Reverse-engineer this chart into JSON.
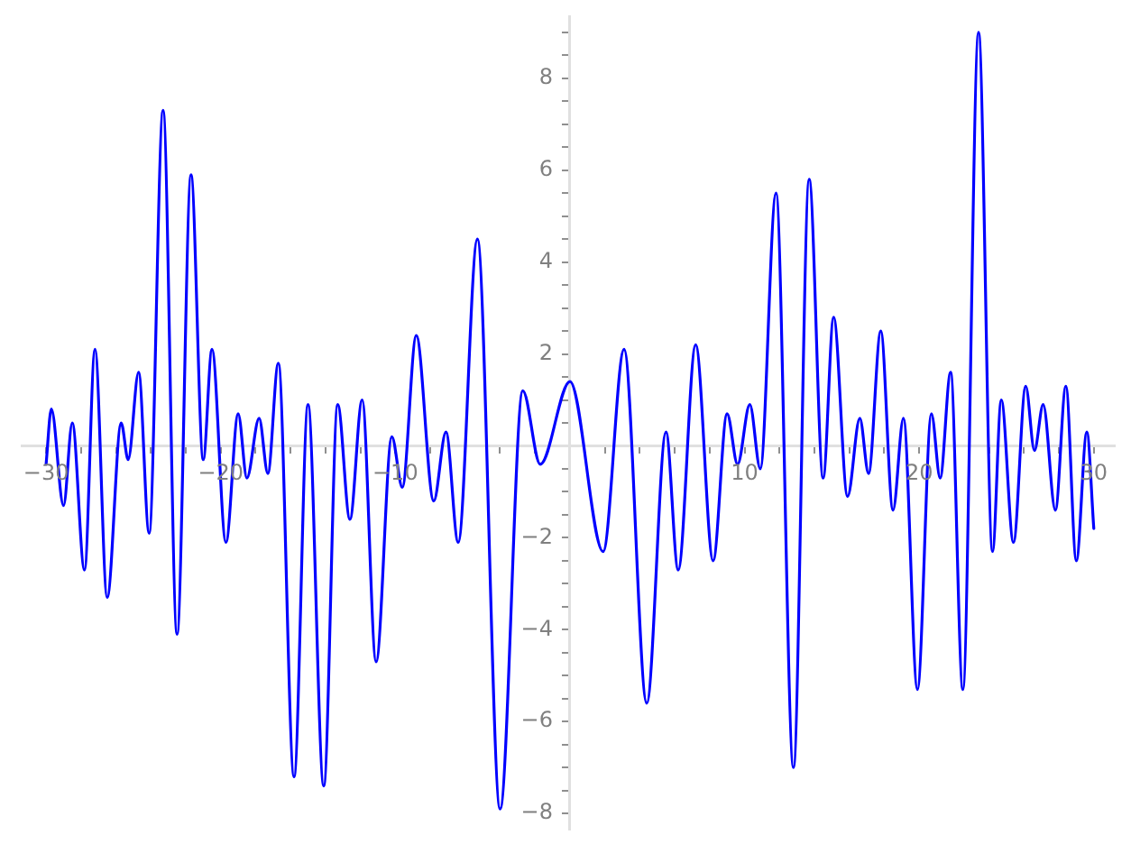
{
  "chart_data": {
    "type": "line",
    "xlim": [
      -31.4,
      31.2
    ],
    "ylim": [
      -8.35,
      9.35
    ],
    "xticks": [
      {
        "value": -30,
        "label": "−30"
      },
      {
        "value": -28,
        "label": null
      },
      {
        "value": -26,
        "label": null
      },
      {
        "value": -24,
        "label": null
      },
      {
        "value": -22,
        "label": null
      },
      {
        "value": -20,
        "label": "−20"
      },
      {
        "value": -18,
        "label": null
      },
      {
        "value": -16,
        "label": null
      },
      {
        "value": -14,
        "label": null
      },
      {
        "value": -12,
        "label": null
      },
      {
        "value": -10,
        "label": "−10"
      },
      {
        "value": -8,
        "label": null
      },
      {
        "value": -6,
        "label": null
      },
      {
        "value": -4,
        "label": null
      },
      {
        "value": -2,
        "label": null
      },
      {
        "value": 2,
        "label": null
      },
      {
        "value": 4,
        "label": null
      },
      {
        "value": 6,
        "label": null
      },
      {
        "value": 8,
        "label": null
      },
      10,
      {
        "value": 12,
        "label": null
      },
      {
        "value": 14,
        "label": null
      },
      {
        "value": 16,
        "label": null
      },
      {
        "value": 18,
        "label": null
      },
      20,
      {
        "value": 22,
        "label": null
      },
      {
        "value": 24,
        "label": null
      },
      {
        "value": 26,
        "label": null
      },
      {
        "value": 28,
        "label": null
      },
      30
    ],
    "yticks": [
      {
        "value": -8,
        "label": "−8"
      },
      {
        "value": -7.5,
        "label": null
      },
      {
        "value": -7,
        "label": null
      },
      {
        "value": -6.5,
        "label": null
      },
      {
        "value": -6,
        "label": "−6"
      },
      {
        "value": -5.5,
        "label": null
      },
      {
        "value": -5,
        "label": null
      },
      {
        "value": -4.5,
        "label": null
      },
      {
        "value": -4,
        "label": "−4"
      },
      {
        "value": -3.5,
        "label": null
      },
      {
        "value": -3,
        "label": null
      },
      {
        "value": -2.5,
        "label": null
      },
      {
        "value": -2,
        "label": "−2"
      },
      {
        "value": -1.5,
        "label": null
      },
      {
        "value": -1,
        "label": null
      },
      {
        "value": -0.5,
        "label": null
      },
      {
        "value": 0.5,
        "label": null
      },
      {
        "value": 1,
        "label": null
      },
      {
        "value": 1.5,
        "label": null
      },
      2,
      {
        "value": 2.5,
        "label": null
      },
      {
        "value": 3,
        "label": null
      },
      {
        "value": 3.5,
        "label": null
      },
      4,
      {
        "value": 4.5,
        "label": null
      },
      {
        "value": 5,
        "label": null
      },
      {
        "value": 5.5,
        "label": null
      },
      6,
      {
        "value": 6.5,
        "label": null
      },
      {
        "value": 7,
        "label": null
      },
      {
        "value": 7.5,
        "label": null
      },
      8,
      {
        "value": 8.5,
        "label": null
      },
      {
        "value": 9,
        "label": null
      }
    ],
    "x": [
      -30,
      -29.7,
      -29,
      -28.5,
      -27.8,
      -27.2,
      -26.5,
      -25.7,
      -25.3,
      -24.7,
      -24.1,
      -23.3,
      -22.5,
      -21.7,
      -21,
      -20.5,
      -19.7,
      -19,
      -18.5,
      -17.8,
      -17.3,
      -16.7,
      -15.8,
      -15,
      -14.1,
      -13.3,
      -12.6,
      -11.9,
      -11.1,
      -10.2,
      -9.6,
      -8.8,
      -7.8,
      -7.1,
      -6.4,
      -5.3,
      -4,
      -2.7,
      -1.7,
      0,
      1.9,
      3.1,
      4.4,
      5.5,
      6.2,
      7.2,
      8.2,
      9,
      9.6,
      10.3,
      10.9,
      11.8,
      12.8,
      13.7,
      14.5,
      15.1,
      15.9,
      16.6,
      17.1,
      17.8,
      18.5,
      19.1,
      19.9,
      20.7,
      21.2,
      21.8,
      22.5,
      23.4,
      24.2,
      24.7,
      25.4,
      26.1,
      26.6,
      27.1,
      27.8,
      28.4,
      29,
      29.6,
      30
    ],
    "series": [
      {
        "color": "#0000ff",
        "values": [
          -0.4,
          0.8,
          -1.3,
          0.5,
          -2.7,
          2.1,
          -3.3,
          0.5,
          -0.3,
          1.6,
          -1.9,
          7.3,
          -4.1,
          5.9,
          -0.3,
          2.1,
          -2.1,
          0.7,
          -0.7,
          0.6,
          -0.6,
          1.8,
          -7.2,
          0.9,
          -7.4,
          0.9,
          -1.6,
          1,
          -4.7,
          0.2,
          -0.9,
          2.4,
          -1.2,
          0.3,
          -2.1,
          4.5,
          -7.9,
          1.2,
          -0.4,
          1.4,
          -2.3,
          2.1,
          -5.6,
          0.3,
          -2.7,
          2.2,
          -2.5,
          0.7,
          -0.4,
          0.9,
          -0.5,
          5.5,
          -7,
          5.8,
          -0.7,
          2.8,
          -1.1,
          0.6,
          -0.6,
          2.5,
          -1.4,
          0.6,
          -5.3,
          0.7,
          -0.7,
          1.6,
          -5.3,
          9,
          -2.3,
          1,
          -2.1,
          1.3,
          -0.1,
          0.9,
          -1.4,
          1.3,
          -2.5,
          0.3,
          -1.8
        ]
      }
    ]
  }
}
